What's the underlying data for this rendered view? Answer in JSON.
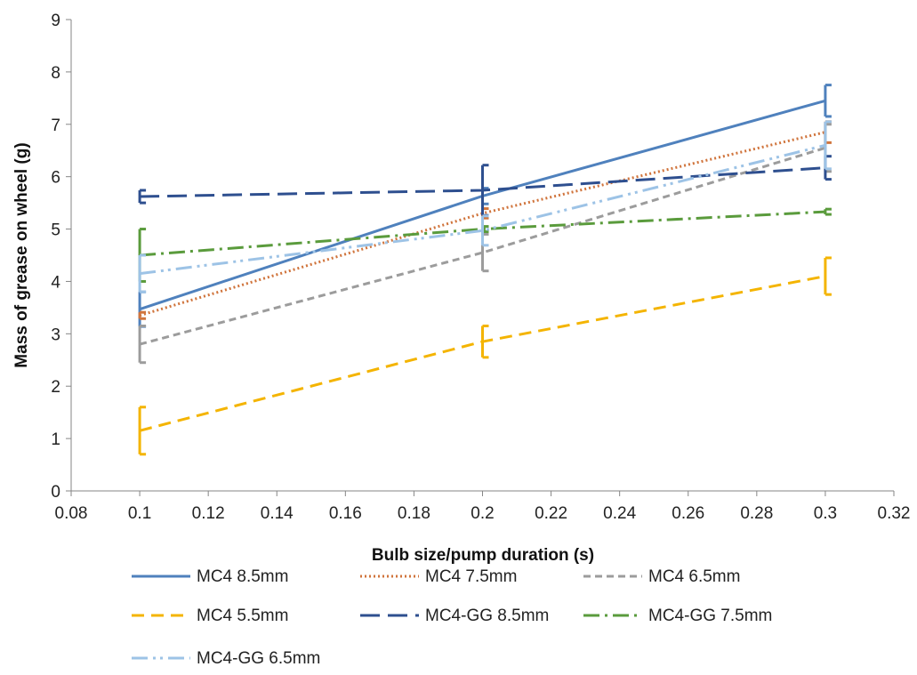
{
  "chart_data": {
    "type": "line",
    "title": "",
    "xlabel": "Bulb size/pump duration  (s)",
    "ylabel": "Mass of grease on wheel (g)",
    "xlim": [
      0.08,
      0.32
    ],
    "ylim": [
      0,
      9
    ],
    "xticks": [
      "0.08",
      "0.1",
      "0.12",
      "0.14",
      "0.16",
      "0.18",
      "0.2",
      "0.22",
      "0.24",
      "0.26",
      "0.28",
      "0.3",
      "0.32"
    ],
    "yticks": [
      "0",
      "1",
      "2",
      "3",
      "4",
      "5",
      "6",
      "7",
      "8",
      "9"
    ],
    "grid": false,
    "legend_position": "bottom",
    "x": [
      0.1,
      0.2,
      0.3
    ],
    "series": [
      {
        "name": "MC4 8.5mm",
        "values": [
          3.47,
          5.63,
          7.45
        ],
        "errors": [
          0.33,
          0.15,
          0.3
        ],
        "color": "#4f81bd",
        "dash": ""
      },
      {
        "name": "MC4 7.5mm",
        "values": [
          3.35,
          5.3,
          6.85
        ],
        "errors": [
          0.06,
          0.09,
          0.2
        ],
        "color": "#d0743c",
        "dash": "2,3"
      },
      {
        "name": "MC4 6.5mm",
        "values": [
          2.8,
          4.55,
          6.55
        ],
        "errors": [
          0.35,
          0.35,
          0.45
        ],
        "color": "#9c9c9c",
        "dash": "8,5"
      },
      {
        "name": "MC4 5.5mm",
        "values": [
          1.15,
          2.85,
          4.1
        ],
        "errors": [
          0.45,
          0.3,
          0.35
        ],
        "color": "#f4b400",
        "dash": "14,8"
      },
      {
        "name": "MC4-GG 8.5mm",
        "values": [
          5.62,
          5.74,
          6.17
        ],
        "errors": [
          0.12,
          0.48,
          0.22
        ],
        "color": "#2e4f8f",
        "dash": "22,9"
      },
      {
        "name": "MC4-GG 7.5mm",
        "values": [
          4.5,
          5.0,
          5.33
        ],
        "errors": [
          0.5,
          0.05,
          0.05
        ],
        "color": "#5a9b3c",
        "dash": "18,6,3,6"
      },
      {
        "name": "MC4-GG 6.5mm",
        "values": [
          4.15,
          4.97,
          6.6
        ],
        "errors": [
          0.35,
          0.28,
          0.45
        ],
        "color": "#9dc3e6",
        "dash": "18,6,3,5,3,6"
      }
    ]
  }
}
